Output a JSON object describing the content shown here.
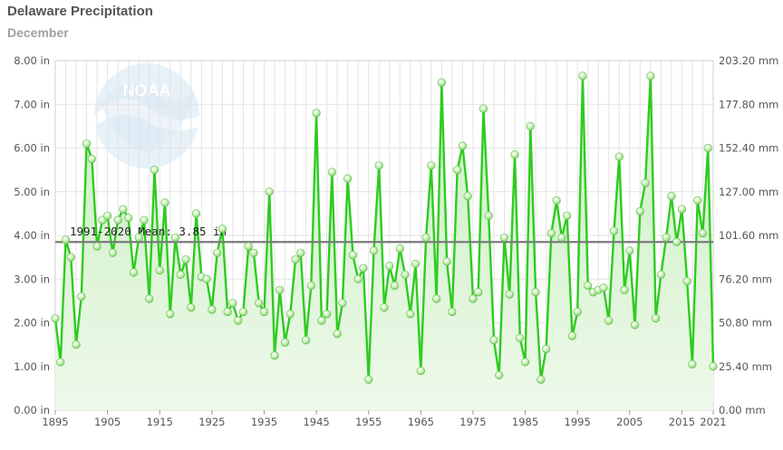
{
  "header": {
    "title": "Delaware Precipitation",
    "subtitle": "December"
  },
  "colors": {
    "line": "#2ecc1f",
    "fill_top": "#c8efc0",
    "fill_bottom": "#eef9ea",
    "mean_line": "#7a7a7a",
    "grid": "#e3e3e3",
    "logo": "#d4e6f4"
  },
  "logo": {
    "text": "NOAA"
  },
  "chart_data": {
    "type": "line",
    "title": "Delaware Precipitation",
    "subtitle": "December",
    "x": [
      1895,
      1896,
      1897,
      1898,
      1899,
      1900,
      1901,
      1902,
      1903,
      1904,
      1905,
      1906,
      1907,
      1908,
      1909,
      1910,
      1911,
      1912,
      1913,
      1914,
      1915,
      1916,
      1917,
      1918,
      1919,
      1920,
      1921,
      1922,
      1923,
      1924,
      1925,
      1926,
      1927,
      1928,
      1929,
      1930,
      1931,
      1932,
      1933,
      1934,
      1935,
      1936,
      1937,
      1938,
      1939,
      1940,
      1941,
      1942,
      1943,
      1944,
      1945,
      1946,
      1947,
      1948,
      1949,
      1950,
      1951,
      1952,
      1953,
      1954,
      1955,
      1956,
      1957,
      1958,
      1959,
      1960,
      1961,
      1962,
      1963,
      1964,
      1965,
      1966,
      1967,
      1968,
      1969,
      1970,
      1971,
      1972,
      1973,
      1974,
      1975,
      1976,
      1977,
      1978,
      1979,
      1980,
      1981,
      1982,
      1983,
      1984,
      1985,
      1986,
      1987,
      1988,
      1989,
      1990,
      1991,
      1992,
      1993,
      1994,
      1995,
      1996,
      1997,
      1998,
      1999,
      2000,
      2001,
      2002,
      2003,
      2004,
      2005,
      2006,
      2007,
      2008,
      2009,
      2010,
      2011,
      2012,
      2013,
      2014,
      2015,
      2016,
      2017,
      2018,
      2019,
      2020,
      2021
    ],
    "series": [
      {
        "values": [
          2.1,
          1.1,
          3.9,
          3.5,
          1.5,
          2.6,
          6.1,
          5.75,
          3.75,
          4.35,
          4.45,
          3.6,
          4.35,
          4.6,
          4.4,
          3.15,
          3.95,
          4.35,
          2.55,
          5.5,
          3.2,
          4.75,
          2.2,
          3.95,
          3.1,
          3.45,
          2.35,
          4.5,
          3.05,
          3.0,
          2.3,
          3.6,
          4.15,
          2.25,
          2.45,
          2.05,
          2.25,
          3.75,
          3.6,
          2.45,
          2.25,
          5.0,
          1.25,
          2.75,
          1.55,
          2.2,
          3.45,
          3.6,
          1.6,
          2.85,
          6.8,
          2.05,
          2.2,
          5.45,
          1.75,
          2.45,
          5.3,
          3.55,
          3.0,
          3.25,
          0.7,
          3.65,
          5.6,
          2.35,
          3.3,
          2.85,
          3.7,
          3.1,
          2.2,
          3.35,
          0.9,
          3.95,
          5.6,
          2.55,
          7.5,
          3.4,
          2.25,
          5.5,
          6.05,
          4.9,
          2.55,
          2.7,
          6.9,
          4.45,
          1.6,
          0.8,
          3.95,
          2.65,
          5.85,
          1.65,
          1.1,
          6.5,
          2.7,
          0.7,
          1.4,
          4.05,
          4.8,
          3.95,
          4.45,
          1.7,
          2.25,
          7.65,
          2.85,
          2.7,
          2.75,
          2.8,
          2.05,
          4.1,
          5.8,
          2.75,
          3.65,
          1.95,
          4.55,
          5.2,
          7.65,
          2.1,
          3.1,
          3.95,
          4.9,
          3.85,
          4.6,
          2.95,
          1.05,
          4.8,
          4.05,
          6.0,
          1.0
        ]
      }
    ],
    "mean": {
      "label": "1991-2020 Mean: 3.85 in",
      "value": 3.85
    },
    "ylim": [
      0,
      8
    ],
    "xlim": [
      1895,
      2021
    ],
    "y_ticks_left": [
      "0.00 in",
      "1.00 in",
      "2.00 in",
      "3.00 in",
      "4.00 in",
      "5.00 in",
      "6.00 in",
      "7.00 in",
      "8.00 in"
    ],
    "y_ticks_right": [
      "0.00 mm",
      "25.40 mm",
      "50.80 mm",
      "76.20 mm",
      "101.60 mm",
      "127.00 mm",
      "152.40 mm",
      "177.80 mm",
      "203.20 mm"
    ],
    "x_ticks": [
      "1895",
      "1905",
      "1915",
      "1925",
      "1935",
      "1945",
      "1955",
      "1965",
      "1975",
      "1985",
      "1995",
      "2005",
      "2015",
      "2021"
    ],
    "grid": true,
    "xlabel": "",
    "ylabel": ""
  }
}
